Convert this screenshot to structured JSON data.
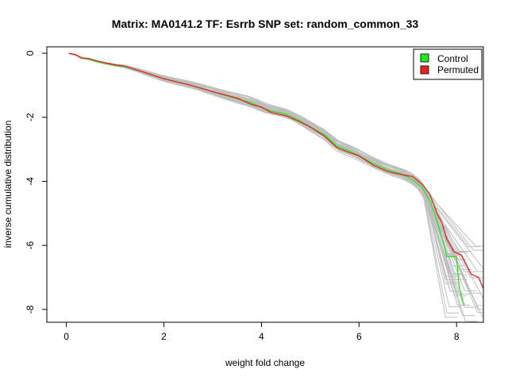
{
  "chart_data": {
    "type": "line",
    "title": "Matrix: MA0141.2 TF: Esrrb SNP set: random_common_33",
    "xlabel": "weight fold change",
    "ylabel": "inverse cumulative distribution",
    "xlim": [
      -0.4,
      8.55
    ],
    "ylim": [
      -8.4,
      0.2
    ],
    "x_ticks": [
      0,
      2,
      4,
      6,
      8
    ],
    "x_tick_labels": [
      "0",
      "2",
      "4",
      "6",
      "8"
    ],
    "y_ticks": [
      0,
      -2,
      -4,
      -6,
      -8
    ],
    "y_tick_labels": [
      "0",
      "-2",
      "-4",
      "-6",
      "-8"
    ],
    "grid": false,
    "legend_position": "top-right",
    "legend": [
      {
        "label": "Control",
        "color": "#22e822"
      },
      {
        "label": "Permuted",
        "color": "#e8231b"
      }
    ],
    "background_series_color": "#bebebe",
    "background_series_count": 40,
    "series": [
      {
        "name": "Control",
        "color": "#22e822",
        "x": [
          0.05,
          0.2,
          0.3,
          0.45,
          0.6,
          0.8,
          1.0,
          1.2,
          1.5,
          2.0,
          2.5,
          3.0,
          3.5,
          3.8,
          4.0,
          4.2,
          4.5,
          4.8,
          5.0,
          5.3,
          5.55,
          5.8,
          6.0,
          6.3,
          6.6,
          6.9,
          7.1,
          7.3,
          7.45,
          7.55,
          7.65,
          7.75,
          7.8,
          8.0,
          8.05,
          8.15
        ],
        "y": [
          0.0,
          -0.05,
          -0.15,
          -0.18,
          -0.25,
          -0.32,
          -0.38,
          -0.42,
          -0.55,
          -0.8,
          -0.98,
          -1.2,
          -1.42,
          -1.55,
          -1.7,
          -1.8,
          -1.9,
          -2.12,
          -2.3,
          -2.55,
          -2.9,
          -3.05,
          -3.2,
          -3.45,
          -3.65,
          -3.78,
          -3.95,
          -4.2,
          -4.6,
          -5.0,
          -5.5,
          -6.0,
          -6.35,
          -6.35,
          -7.3,
          -7.85
        ]
      },
      {
        "name": "Permuted",
        "color": "#e8231b",
        "x": [
          0.05,
          0.2,
          0.3,
          0.45,
          0.6,
          0.8,
          1.0,
          1.2,
          1.5,
          2.0,
          2.5,
          3.0,
          3.5,
          3.8,
          4.0,
          4.2,
          4.5,
          4.8,
          5.0,
          5.3,
          5.55,
          5.8,
          6.0,
          6.3,
          6.6,
          6.9,
          7.1,
          7.3,
          7.45,
          7.6,
          7.7,
          7.8,
          7.95,
          8.1,
          8.2,
          8.3,
          8.45,
          8.55
        ],
        "y": [
          0.0,
          -0.05,
          -0.15,
          -0.16,
          -0.23,
          -0.3,
          -0.36,
          -0.4,
          -0.55,
          -0.8,
          -0.98,
          -1.2,
          -1.4,
          -1.6,
          -1.68,
          -1.85,
          -1.95,
          -2.15,
          -2.3,
          -2.6,
          -2.95,
          -3.1,
          -3.2,
          -3.5,
          -3.7,
          -3.8,
          -3.85,
          -4.1,
          -4.4,
          -5.0,
          -5.3,
          -5.8,
          -6.2,
          -6.3,
          -6.6,
          -6.9,
          -7.0,
          -7.35
        ]
      }
    ]
  }
}
